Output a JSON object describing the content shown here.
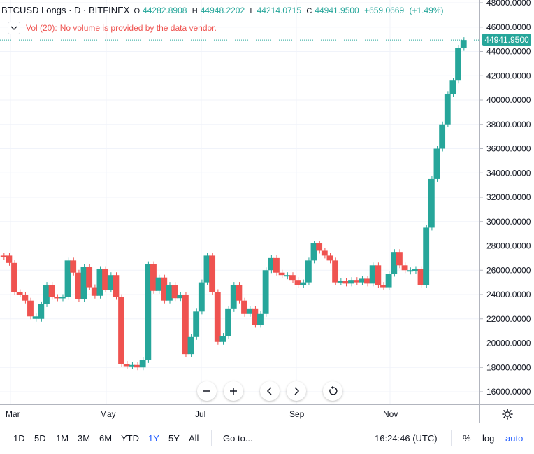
{
  "legend": {
    "symbol": "BTCUSD Longs · D · BITFINEX",
    "o_label": "O",
    "o_value": "44282.8908",
    "h_label": "H",
    "h_value": "44948.2202",
    "l_label": "L",
    "l_value": "44214.0715",
    "c_label": "C",
    "c_value": "44941.9500",
    "change": "+659.0669",
    "change_pct": "(+1.49%)"
  },
  "volume": {
    "label": "Vol (20):",
    "message": "No volume is provided by the data vendor."
  },
  "last_price": "44941.9500",
  "time_axis": [
    "Mar",
    "May",
    "Jul",
    "Sep",
    "Nov"
  ],
  "price_axis": [
    "48000.0000",
    "46000.0000",
    "44000.0000",
    "42000.0000",
    "40000.0000",
    "38000.0000",
    "36000.0000",
    "34000.0000",
    "32000.0000",
    "30000.0000",
    "28000.0000",
    "26000.0000",
    "24000.0000",
    "22000.0000",
    "20000.0000",
    "18000.0000",
    "16000.0000"
  ],
  "bottom_bar": {
    "ranges": [
      "1D",
      "5D",
      "1M",
      "3M",
      "6M",
      "YTD",
      "1Y",
      "5Y",
      "All"
    ],
    "active_range": "1Y",
    "goto": "Go to...",
    "clock": "16:24:46 (UTC)",
    "percent": "%",
    "log": "log",
    "auto": "auto"
  },
  "colors": {
    "up": "#26a69a",
    "down": "#ef5350",
    "grid": "#f0f3fa",
    "active": "#2962ff"
  },
  "icons": [
    "zoom-out-icon",
    "zoom-in-icon",
    "scroll-left-icon",
    "scroll-right-icon",
    "reset-icon",
    "settings-gear-icon",
    "collapse-chevron-icon"
  ],
  "chart_data": {
    "type": "candlestick",
    "title": "BTCUSD Longs · D · BITFINEX",
    "y_axis_range": [
      16000,
      48000
    ],
    "x_axis_ticks": [
      "Mar",
      "May",
      "Jul",
      "Sep",
      "Nov"
    ],
    "grid": true,
    "series_points": [
      [
        27200,
        "down"
      ],
      [
        26600,
        "down"
      ],
      [
        24200,
        "down"
      ],
      [
        24000,
        "down"
      ],
      [
        23500,
        "down"
      ],
      [
        22200,
        "down"
      ],
      [
        22000,
        "up"
      ],
      [
        23200,
        "up"
      ],
      [
        24800,
        "up"
      ],
      [
        23800,
        "down"
      ],
      [
        23700,
        "down"
      ],
      [
        23800,
        "up"
      ],
      [
        26800,
        "up"
      ],
      [
        25800,
        "down"
      ],
      [
        23600,
        "down"
      ],
      [
        26300,
        "up"
      ],
      [
        24600,
        "down"
      ],
      [
        23900,
        "down"
      ],
      [
        26100,
        "up"
      ],
      [
        24400,
        "down"
      ],
      [
        25600,
        "up"
      ],
      [
        23800,
        "down"
      ],
      [
        18300,
        "down"
      ],
      [
        18100,
        "down"
      ],
      [
        18200,
        "up"
      ],
      [
        18000,
        "down"
      ],
      [
        18600,
        "up"
      ],
      [
        26500,
        "up"
      ],
      [
        24300,
        "down"
      ],
      [
        25400,
        "up"
      ],
      [
        23500,
        "down"
      ],
      [
        24800,
        "up"
      ],
      [
        23700,
        "down"
      ],
      [
        24000,
        "up"
      ],
      [
        19100,
        "down"
      ],
      [
        20500,
        "up"
      ],
      [
        22600,
        "up"
      ],
      [
        25000,
        "up"
      ],
      [
        27200,
        "up"
      ],
      [
        24200,
        "down"
      ],
      [
        20100,
        "down"
      ],
      [
        20600,
        "up"
      ],
      [
        22800,
        "up"
      ],
      [
        24800,
        "up"
      ],
      [
        23500,
        "down"
      ],
      [
        22400,
        "down"
      ],
      [
        22800,
        "up"
      ],
      [
        21500,
        "down"
      ],
      [
        22400,
        "up"
      ],
      [
        26000,
        "up"
      ],
      [
        27000,
        "up"
      ],
      [
        25800,
        "down"
      ],
      [
        25600,
        "down"
      ],
      [
        25600,
        "up"
      ],
      [
        25200,
        "down"
      ],
      [
        24800,
        "down"
      ],
      [
        25000,
        "up"
      ],
      [
        26800,
        "up"
      ],
      [
        28200,
        "up"
      ],
      [
        27600,
        "down"
      ],
      [
        27200,
        "down"
      ],
      [
        26800,
        "down"
      ],
      [
        25000,
        "down"
      ],
      [
        25100,
        "up"
      ],
      [
        24900,
        "down"
      ],
      [
        25200,
        "up"
      ],
      [
        25000,
        "down"
      ],
      [
        25300,
        "up"
      ],
      [
        24900,
        "down"
      ],
      [
        26400,
        "up"
      ],
      [
        24800,
        "down"
      ],
      [
        24600,
        "down"
      ],
      [
        25700,
        "up"
      ],
      [
        27500,
        "up"
      ],
      [
        26400,
        "down"
      ],
      [
        26000,
        "down"
      ],
      [
        25900,
        "up"
      ],
      [
        26100,
        "up"
      ],
      [
        24800,
        "down"
      ],
      [
        29500,
        "up"
      ],
      [
        33500,
        "up"
      ],
      [
        36000,
        "up"
      ],
      [
        38000,
        "up"
      ],
      [
        40500,
        "up"
      ],
      [
        41600,
        "up"
      ],
      [
        44282.8908,
        "up"
      ],
      [
        44941.95,
        "up"
      ]
    ]
  }
}
